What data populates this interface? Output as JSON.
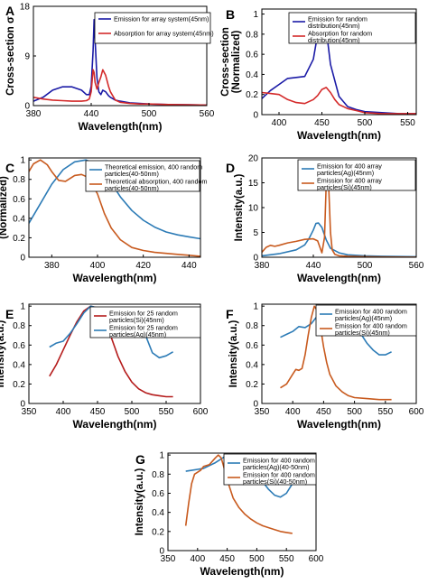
{
  "figure": {
    "panels": [
      {
        "key": "A",
        "letter": "A"
      },
      {
        "key": "B",
        "letter": "B"
      },
      {
        "key": "C",
        "letter": "C"
      },
      {
        "key": "D",
        "letter": "D"
      },
      {
        "key": "E",
        "letter": "E"
      },
      {
        "key": "F",
        "letter": "F"
      },
      {
        "key": "G",
        "letter": "G"
      }
    ]
  },
  "colors": {
    "blue_dark": "#1a1aa6",
    "red": "#d42a2a",
    "blue": "#2c7bb6",
    "orange": "#c85a1e",
    "maroon": "#b51c1c"
  },
  "chart_data": [
    {
      "panel": "A",
      "type": "line",
      "xlabel": "Wavelength(nm)",
      "ylabel": "Cross-section σ",
      "xlim": [
        380,
        560
      ],
      "ylim": [
        0,
        18
      ],
      "xticks": [
        380,
        440,
        500,
        560
      ],
      "yticks": [
        0,
        9,
        18
      ],
      "legend_position": "top-right",
      "series": [
        {
          "name": "Emission for array system(45nm)",
          "color": "#1a1aa6",
          "x": [
            380,
            390,
            400,
            410,
            420,
            430,
            435,
            438,
            440,
            442,
            443,
            444,
            446,
            448,
            450,
            452,
            455,
            458,
            460,
            465,
            470,
            480,
            490,
            500,
            520,
            540,
            560
          ],
          "y": [
            0.8,
            1.5,
            2.8,
            3.4,
            3.4,
            2.8,
            2.0,
            2.0,
            3.5,
            10,
            15.6,
            12,
            5,
            2.5,
            2.0,
            2.8,
            2.5,
            1.8,
            1.5,
            1.0,
            0.8,
            0.5,
            0.4,
            0.3,
            0.2,
            0.15,
            0.1
          ]
        },
        {
          "name": "Absorption for array system(45nm)",
          "color": "#d42a2a",
          "x": [
            380,
            390,
            400,
            410,
            420,
            430,
            435,
            438,
            440,
            442,
            443,
            444,
            446,
            448,
            450,
            452,
            455,
            458,
            460,
            465,
            470,
            480,
            490,
            500,
            520,
            540,
            560
          ],
          "y": [
            1.5,
            1.2,
            1.0,
            0.9,
            0.8,
            0.8,
            0.9,
            1.2,
            2.5,
            6.5,
            6.0,
            4.2,
            3.0,
            4.2,
            5.2,
            6.5,
            5.5,
            3.5,
            2.5,
            1.0,
            0.6,
            0.4,
            0.3,
            0.3,
            0.2,
            0.15,
            0.1
          ]
        }
      ]
    },
    {
      "panel": "B",
      "type": "line",
      "xlabel": "Wavelength(nm)",
      "ylabel": "Cross-section (Normalized)",
      "xlim": [
        380,
        560
      ],
      "ylim": [
        0,
        1.05
      ],
      "xticks": [
        400,
        450,
        500,
        550
      ],
      "yticks": [
        0,
        0.2,
        0.4,
        0.6,
        0.8,
        1
      ],
      "legend_position": "top-right",
      "series": [
        {
          "name": "Emission for random distribution(45nm)",
          "color": "#1a1aa6",
          "x": [
            380,
            390,
            400,
            410,
            420,
            430,
            440,
            445,
            450,
            455,
            460,
            470,
            480,
            490,
            500,
            520,
            540,
            560
          ],
          "y": [
            0.16,
            0.24,
            0.3,
            0.36,
            0.37,
            0.38,
            0.55,
            0.8,
            1.0,
            0.85,
            0.5,
            0.18,
            0.08,
            0.05,
            0.03,
            0.02,
            0.01,
            0.01
          ]
        },
        {
          "name": "Absorption for random distribution(45nm)",
          "color": "#d42a2a",
          "x": [
            380,
            390,
            400,
            410,
            420,
            430,
            440,
            445,
            450,
            455,
            460,
            465,
            470,
            480,
            490,
            500,
            520,
            540,
            560
          ],
          "y": [
            0.22,
            0.21,
            0.2,
            0.15,
            0.12,
            0.11,
            0.15,
            0.19,
            0.25,
            0.27,
            0.22,
            0.15,
            0.1,
            0.06,
            0.04,
            0.02,
            0.01,
            0.01,
            0.01
          ]
        }
      ]
    },
    {
      "panel": "C",
      "type": "line",
      "xlabel": "Wavelength(nm)",
      "ylabel": "Cross-Section (Normalized)",
      "xlim": [
        370,
        445
      ],
      "ylim": [
        0,
        1.02
      ],
      "xticks": [
        380,
        400,
        420,
        440
      ],
      "yticks": [
        0,
        0.2,
        0.4,
        0.6,
        0.8,
        1
      ],
      "legend_position": "top-right",
      "series": [
        {
          "name": "Theoretical emission, 400 random particles(40-50nm)",
          "color": "#2c7bb6",
          "x": [
            370,
            375,
            380,
            385,
            390,
            395,
            400,
            405,
            410,
            415,
            420,
            425,
            430,
            435,
            440,
            445
          ],
          "y": [
            0.35,
            0.55,
            0.75,
            0.9,
            0.98,
            1.0,
            0.95,
            0.8,
            0.62,
            0.48,
            0.38,
            0.31,
            0.26,
            0.23,
            0.21,
            0.19
          ]
        },
        {
          "name": "Theoretical absorption, 400 random particles(40-50nm)",
          "color": "#c85a1e",
          "x": [
            370,
            372,
            375,
            378,
            380,
            383,
            386,
            390,
            393,
            396,
            400,
            403,
            406,
            410,
            415,
            420,
            425,
            430,
            435,
            440,
            445
          ],
          "y": [
            0.88,
            0.96,
            1.0,
            0.95,
            0.88,
            0.79,
            0.78,
            0.84,
            0.85,
            0.82,
            0.65,
            0.45,
            0.3,
            0.18,
            0.1,
            0.07,
            0.05,
            0.04,
            0.03,
            0.02,
            0.01
          ]
        }
      ]
    },
    {
      "panel": "D",
      "type": "line",
      "xlabel": "Wavelength(nm)",
      "ylabel": "Intensity(a.u.)",
      "xlim": [
        380,
        560
      ],
      "ylim": [
        0,
        20
      ],
      "xticks": [
        380,
        440,
        500,
        560
      ],
      "yticks": [
        0,
        5,
        10,
        15,
        20
      ],
      "legend_position": "top-right",
      "series": [
        {
          "name": "Emission for 400 array particles(Ag)(45nm)",
          "color": "#2c7bb6",
          "x": [
            380,
            400,
            420,
            430,
            435,
            440,
            443,
            446,
            450,
            455,
            460,
            470,
            480,
            500,
            520,
            540,
            560
          ],
          "y": [
            0.3,
            0.7,
            1.5,
            2.5,
            3.8,
            5.5,
            6.8,
            6.9,
            6.0,
            3.5,
            1.8,
            0.9,
            0.5,
            0.3,
            0.2,
            0.15,
            0.1
          ]
        },
        {
          "name": "Emission for 400 array particles(Si)(45nm)",
          "color": "#c85a1e",
          "x": [
            380,
            385,
            390,
            395,
            400,
            410,
            420,
            430,
            440,
            445,
            450,
            453,
            455,
            456,
            458,
            460,
            462,
            465,
            470,
            480,
            500,
            520,
            540,
            560
          ],
          "y": [
            1.0,
            2.0,
            2.4,
            2.2,
            2.4,
            2.9,
            3.2,
            3.6,
            3.7,
            3.3,
            0.9,
            4,
            15,
            19.5,
            14,
            5,
            1.5,
            0.6,
            0.3,
            0.2,
            0.1,
            0.05,
            0.03,
            0.02
          ]
        }
      ]
    },
    {
      "panel": "E",
      "type": "line",
      "xlabel": "Wavelength(nm)",
      "ylabel": "Intensity(a.u.)",
      "xlim": [
        350,
        600
      ],
      "ylim": [
        0,
        1.02
      ],
      "xticks": [
        350,
        400,
        450,
        500,
        550,
        600
      ],
      "yticks": [
        0,
        0.2,
        0.4,
        0.6,
        0.8,
        1
      ],
      "legend_position": "top-right",
      "series": [
        {
          "name": "Emission for 25 random particles(Si)(45nm)",
          "color": "#b51c1c",
          "x": [
            380,
            390,
            400,
            410,
            420,
            430,
            440,
            450,
            460,
            470,
            480,
            490,
            500,
            510,
            520,
            530,
            540,
            550,
            560
          ],
          "y": [
            0.28,
            0.4,
            0.55,
            0.7,
            0.84,
            0.95,
            1.0,
            0.98,
            0.86,
            0.68,
            0.48,
            0.33,
            0.22,
            0.15,
            0.11,
            0.09,
            0.08,
            0.07,
            0.07
          ]
        },
        {
          "name": "Emission for 25 random particles(Ag)(45nm)",
          "color": "#2c7bb6",
          "x": [
            380,
            390,
            400,
            410,
            420,
            430,
            440,
            450,
            460,
            470,
            480,
            490,
            500,
            510,
            520,
            530,
            540,
            550,
            560
          ],
          "y": [
            0.58,
            0.62,
            0.64,
            0.72,
            0.82,
            0.93,
            1.0,
            0.98,
            0.94,
            0.92,
            0.93,
            0.96,
            0.93,
            0.86,
            0.7,
            0.52,
            0.47,
            0.49,
            0.53
          ]
        }
      ]
    },
    {
      "panel": "F",
      "type": "line",
      "xlabel": "Wavelength(nm)",
      "ylabel": "Intensity(a.u.)",
      "xlim": [
        350,
        600
      ],
      "ylim": [
        0,
        1.02
      ],
      "xticks": [
        350,
        400,
        450,
        500,
        550,
        600
      ],
      "yticks": [
        0,
        0.2,
        0.4,
        0.6,
        0.8,
        1
      ],
      "legend_position": "top-right",
      "series": [
        {
          "name": "Emission for 400 random particles(Ag)(45nm)",
          "color": "#2c7bb6",
          "x": [
            380,
            390,
            400,
            410,
            420,
            430,
            440,
            450,
            460,
            470,
            480,
            490,
            500,
            510,
            520,
            530,
            540,
            550,
            560
          ],
          "y": [
            0.68,
            0.71,
            0.74,
            0.79,
            0.78,
            0.82,
            0.9,
            1.0,
            0.99,
            0.97,
            0.93,
            0.88,
            0.82,
            0.72,
            0.62,
            0.55,
            0.5,
            0.5,
            0.53
          ]
        },
        {
          "name": "Emission for 400 random particles(Si)(45nm)",
          "color": "#c85a1e",
          "x": [
            380,
            390,
            400,
            405,
            410,
            415,
            420,
            425,
            430,
            435,
            440,
            445,
            450,
            455,
            460,
            470,
            480,
            490,
            500,
            520,
            540,
            560
          ],
          "y": [
            0.16,
            0.2,
            0.3,
            0.35,
            0.34,
            0.36,
            0.5,
            0.7,
            0.88,
            1.0,
            0.95,
            0.78,
            0.58,
            0.42,
            0.3,
            0.18,
            0.12,
            0.08,
            0.06,
            0.05,
            0.04,
            0.04
          ]
        }
      ]
    },
    {
      "panel": "G",
      "type": "line",
      "xlabel": "Wavelength(nm)",
      "ylabel": "Intensity(a.u.)",
      "xlim": [
        350,
        600
      ],
      "ylim": [
        0,
        1.02
      ],
      "xticks": [
        350,
        400,
        450,
        500,
        550,
        600
      ],
      "yticks": [
        0,
        0.2,
        0.4,
        0.6,
        0.8,
        1
      ],
      "legend_position": "top-right",
      "series": [
        {
          "name": "Emission for 400 random particles(Ag)(40-50nm)",
          "color": "#2c7bb6",
          "x": [
            380,
            390,
            400,
            410,
            420,
            430,
            440,
            450,
            460,
            470,
            480,
            490,
            500,
            510,
            520,
            530,
            540,
            550,
            560
          ],
          "y": [
            0.83,
            0.84,
            0.85,
            0.86,
            0.89,
            0.92,
            0.96,
            1.0,
            1.0,
            0.99,
            0.95,
            0.88,
            0.8,
            0.72,
            0.64,
            0.58,
            0.56,
            0.6,
            0.7
          ]
        },
        {
          "name": "Emission for 400 random particles(Si)(40-50nm)",
          "color": "#c85a1e",
          "x": [
            380,
            385,
            390,
            395,
            400,
            405,
            410,
            420,
            430,
            435,
            440,
            445,
            450,
            460,
            470,
            480,
            490,
            500,
            510,
            520,
            530,
            540,
            550,
            560
          ],
          "y": [
            0.26,
            0.5,
            0.7,
            0.8,
            0.82,
            0.84,
            0.88,
            0.9,
            0.97,
            1.0,
            0.97,
            0.86,
            0.74,
            0.55,
            0.45,
            0.38,
            0.33,
            0.29,
            0.26,
            0.24,
            0.22,
            0.2,
            0.19,
            0.18
          ]
        }
      ]
    }
  ]
}
